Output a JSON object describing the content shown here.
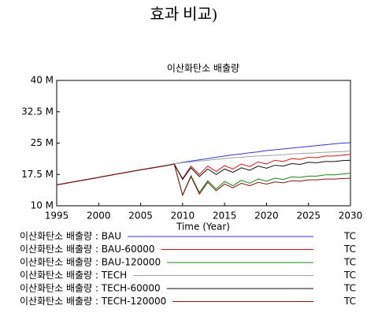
{
  "page_text": "효과 비교)",
  "chart_data": {
    "type": "line",
    "title": "이산화탄소 배출량",
    "xlabel": "Time (Year)",
    "x": [
      1995,
      2000,
      2005,
      2008,
      2009,
      2010,
      2011,
      2012,
      2013,
      2014,
      2015,
      2016,
      2017,
      2018,
      2019,
      2020,
      2021,
      2022,
      2023,
      2024,
      2025,
      2026,
      2027,
      2028,
      2029,
      2030
    ],
    "xlim": [
      1995,
      2030
    ],
    "xticks": [
      1995,
      2000,
      2005,
      2010,
      2015,
      2020,
      2025,
      2030
    ],
    "ylim": [
      10,
      40
    ],
    "yticks": [
      {
        "value": 10,
        "label": "10 M"
      },
      {
        "value": 17.5,
        "label": "17.5 M"
      },
      {
        "value": 25,
        "label": "25 M"
      },
      {
        "value": 32.5,
        "label": "32.5 M"
      },
      {
        "value": 40,
        "label": "40 M"
      }
    ],
    "grid": false,
    "legend": "bottom",
    "series": [
      {
        "name": "이산화탄소 배출량 : BAU",
        "unit": "TC",
        "color": "#3333dd",
        "values": [
          15.0,
          16.8,
          18.6,
          19.6,
          20.0,
          20.4,
          20.7,
          21.0,
          21.3,
          21.6,
          21.9,
          22.2,
          22.4,
          22.7,
          22.9,
          23.2,
          23.4,
          23.6,
          23.8,
          24.0,
          24.2,
          24.4,
          24.6,
          24.8,
          25.0,
          25.1
        ]
      },
      {
        "name": "이산화탄소 배출량 : BAU-60000",
        "unit": "TC",
        "color": "#dd1111",
        "values": [
          15.0,
          16.8,
          18.6,
          19.6,
          20.0,
          16.5,
          19.5,
          17.5,
          19.5,
          18.2,
          19.6,
          18.8,
          20.0,
          19.4,
          20.5,
          20.0,
          20.9,
          20.6,
          21.3,
          21.1,
          21.6,
          21.5,
          21.9,
          21.9,
          22.1,
          22.3
        ]
      },
      {
        "name": "이산화탄소 배출량 : BAU-120000",
        "unit": "TC",
        "color": "#118811",
        "values": [
          15.0,
          16.8,
          18.6,
          19.6,
          20.0,
          12.6,
          17.2,
          13.2,
          16.0,
          14.0,
          15.8,
          14.8,
          16.1,
          15.4,
          16.4,
          15.9,
          16.6,
          16.3,
          16.9,
          16.8,
          17.1,
          17.1,
          17.4,
          17.4,
          17.6,
          17.8
        ]
      },
      {
        "name": "이산화탄소 배출량 : TECH",
        "unit": "TC",
        "color": "#a0a0a0",
        "values": [
          15.0,
          16.8,
          18.6,
          19.6,
          20.0,
          20.3,
          20.5,
          20.7,
          20.9,
          21.1,
          21.3,
          21.5,
          21.6,
          21.8,
          21.9,
          22.0,
          22.1,
          22.2,
          22.4,
          22.5,
          22.6,
          22.7,
          22.8,
          22.9,
          23.0,
          23.1
        ]
      },
      {
        "name": "이산화탄소 배출량 : TECH-60000",
        "unit": "TC",
        "color": "#111111",
        "values": [
          15.0,
          16.8,
          18.6,
          19.6,
          20.0,
          16.3,
          19.1,
          17.0,
          18.8,
          17.5,
          18.8,
          18.0,
          19.1,
          18.5,
          19.5,
          19.0,
          19.7,
          19.5,
          20.1,
          19.9,
          20.4,
          20.3,
          20.6,
          20.6,
          20.8,
          20.9
        ]
      },
      {
        "name": "이산화탄소 배출량 : TECH-120000",
        "unit": "TC",
        "color": "#881111",
        "values": [
          15.0,
          16.8,
          18.6,
          19.6,
          20.0,
          12.5,
          17.0,
          12.8,
          15.6,
          13.6,
          15.2,
          14.3,
          15.4,
          14.8,
          15.6,
          15.2,
          15.7,
          15.5,
          16.0,
          15.9,
          16.2,
          16.2,
          16.4,
          16.4,
          16.5,
          16.6
        ]
      }
    ]
  }
}
